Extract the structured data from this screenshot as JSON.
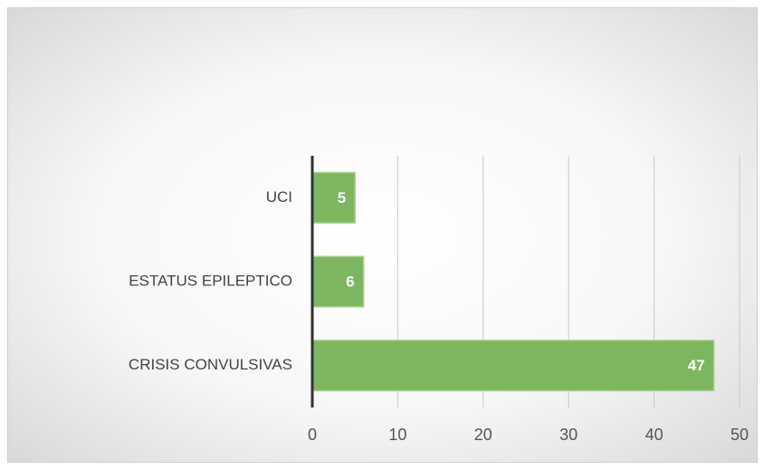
{
  "chart_data": {
    "type": "barh",
    "categories": [
      "UCI",
      "ESTATUS EPILEPTICO",
      "CRISIS CONVULSIVAS"
    ],
    "values": [
      5,
      6,
      47
    ],
    "color": "#7db65f",
    "xlim": [
      0,
      50
    ],
    "xticks": [
      0,
      10,
      20,
      30,
      40,
      50
    ],
    "grid": true
  }
}
